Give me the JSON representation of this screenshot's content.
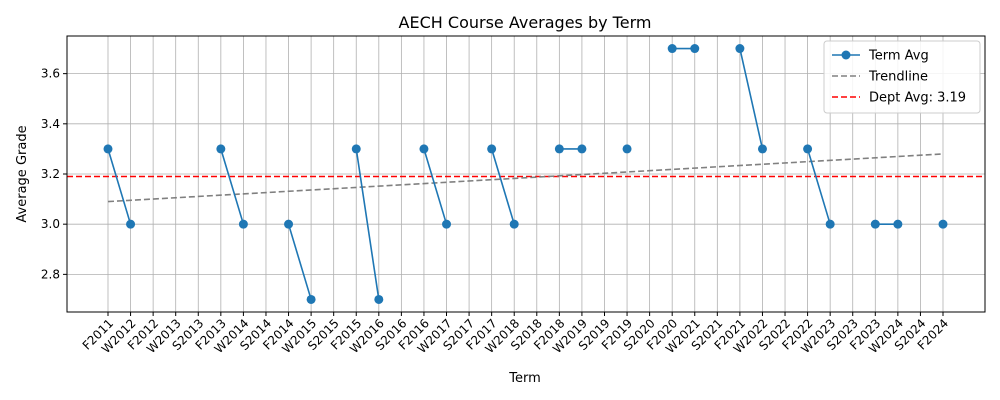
{
  "chart_data": {
    "type": "line",
    "title": "AECH Course Averages by Term",
    "xlabel": "Term",
    "ylabel": "Average Grade",
    "ylim": [
      2.65,
      3.75
    ],
    "yticks": [
      2.8,
      3.0,
      3.2,
      3.4,
      3.6
    ],
    "ytick_labels": [
      "2.8",
      "3.0",
      "3.2",
      "3.4",
      "3.6"
    ],
    "grid": true,
    "legend_position": "top-right",
    "categories": [
      "F2011",
      "W2012",
      "F2012",
      "W2013",
      "S2013",
      "F2013",
      "W2014",
      "S2014",
      "F2014",
      "W2015",
      "S2015",
      "F2015",
      "W2016",
      "S2016",
      "F2016",
      "W2017",
      "S2017",
      "F2017",
      "W2018",
      "S2018",
      "F2018",
      "W2019",
      "S2019",
      "F2019",
      "S2020",
      "F2020",
      "W2021",
      "S2021",
      "F2021",
      "W2022",
      "S2022",
      "F2022",
      "W2023",
      "S2023",
      "F2023",
      "W2024",
      "S2024",
      "F2024"
    ],
    "series": [
      {
        "name": "Term Avg",
        "style": "line-marker",
        "color": "#1f77b4",
        "values": [
          3.3,
          3.0,
          null,
          null,
          null,
          3.3,
          3.0,
          null,
          3.0,
          2.7,
          null,
          3.3,
          2.7,
          null,
          3.3,
          3.0,
          null,
          3.3,
          3.0,
          null,
          3.3,
          3.3,
          null,
          3.3,
          null,
          3.7,
          3.7,
          null,
          3.7,
          3.3,
          null,
          3.3,
          3.0,
          null,
          3.0,
          3.0,
          null,
          3.0
        ]
      },
      {
        "name": "Trendline",
        "style": "dashed",
        "color": "#808080",
        "start": 3.09,
        "end": 3.28
      },
      {
        "name": "Dept Avg: 3.19",
        "style": "dashed-horizontal",
        "color": "#ff0000",
        "value": 3.19
      }
    ]
  }
}
